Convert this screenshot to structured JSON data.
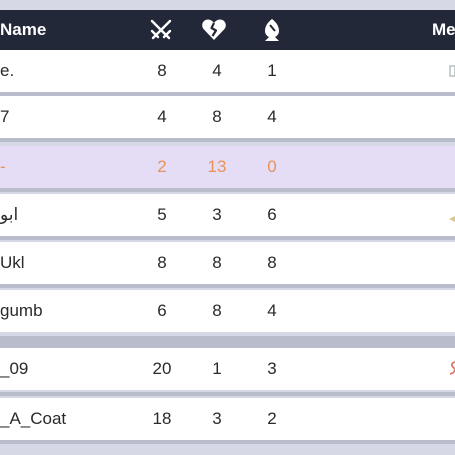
{
  "header": {
    "name_label": "Name",
    "medal_label": "Me",
    "icons": [
      "crossed-swords-icon",
      "broken-heart-icon",
      "bishop-icon"
    ]
  },
  "rows": [
    {
      "name": "e.",
      "v1": "8",
      "v2": "4",
      "v3": "1",
      "medal": "gray"
    },
    {
      "name": "7",
      "v1": "4",
      "v2": "8",
      "v3": "4",
      "medal": ""
    },
    {
      "name": "-",
      "v1": "2",
      "v2": "13",
      "v3": "0",
      "medal": "",
      "highlight": true
    },
    {
      "name": "ابو",
      "v1": "5",
      "v2": "3",
      "v3": "6",
      "medal": "gold"
    },
    {
      "name": "Ukl",
      "v1": "8",
      "v2": "8",
      "v3": "8",
      "medal": ""
    },
    {
      "name": "gumb",
      "v1": "6",
      "v2": "8",
      "v3": "4",
      "medal": ""
    },
    {
      "name": "_09",
      "v1": "20",
      "v2": "1",
      "v3": "3",
      "medal": "red"
    },
    {
      "name": "_A_Coat",
      "v1": "18",
      "v2": "3",
      "v3": "2",
      "medal": ""
    }
  ],
  "colors": {
    "header_bg": "#232838",
    "row_bg": "#ffffff",
    "highlight_bg": "#e5dcf6",
    "highlight_text": "#e8935a",
    "separator": "#b9bccb"
  }
}
